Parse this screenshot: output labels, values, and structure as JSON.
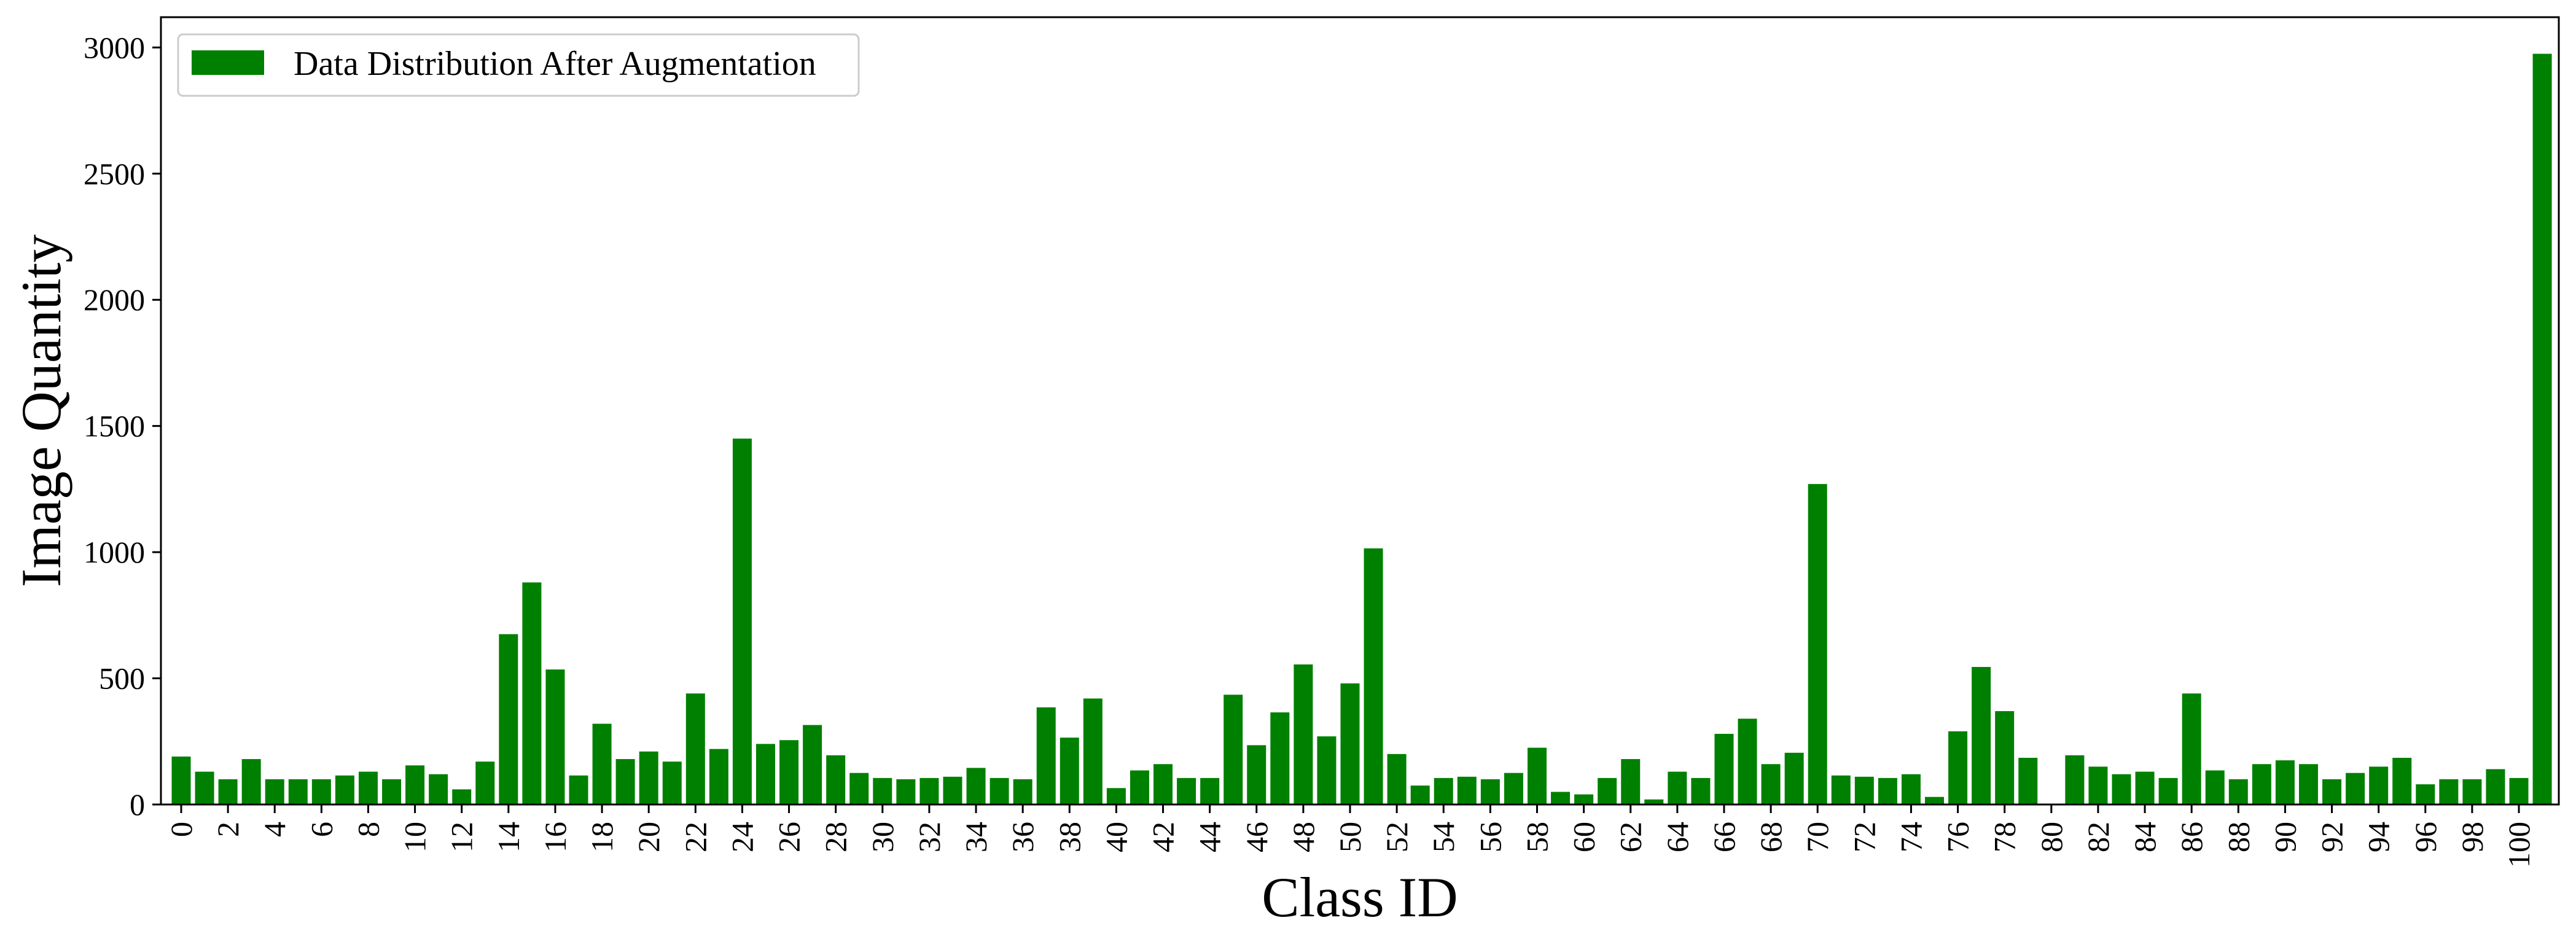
{
  "chart_data": {
    "type": "bar",
    "title": "",
    "xlabel": "Class ID",
    "ylabel": "Image Quantity",
    "ylim": [
      0,
      3120
    ],
    "yticks": [
      0,
      500,
      1000,
      1500,
      2000,
      2500,
      3000
    ],
    "xtick_step": 2,
    "grid": false,
    "legend_position": "top-left",
    "bar_color": "#008000",
    "series": [
      {
        "name": "Data Distribution After Augmentation",
        "values": [
          190,
          130,
          100,
          180,
          100,
          100,
          100,
          115,
          130,
          100,
          155,
          120,
          60,
          170,
          675,
          880,
          535,
          115,
          320,
          180,
          210,
          170,
          440,
          220,
          1450,
          240,
          255,
          315,
          195,
          125,
          105,
          100,
          105,
          110,
          145,
          105,
          100,
          385,
          265,
          420,
          65,
          135,
          160,
          105,
          105,
          435,
          235,
          365,
          555,
          270,
          480,
          1015,
          200,
          75,
          105,
          110,
          100,
          125,
          225,
          50,
          40,
          105,
          180,
          20,
          130,
          105,
          280,
          340,
          160,
          205,
          1270,
          115,
          110,
          105,
          120,
          30,
          290,
          545,
          370,
          185,
          0,
          195,
          150,
          120,
          130,
          105,
          440,
          135,
          100,
          160,
          175,
          160,
          100,
          125,
          150,
          185,
          80,
          100,
          100,
          140,
          105,
          2975
        ]
      }
    ],
    "categories": [
      "0",
      "1",
      "2",
      "3",
      "4",
      "5",
      "6",
      "7",
      "8",
      "9",
      "10",
      "11",
      "12",
      "13",
      "14",
      "15",
      "16",
      "17",
      "18",
      "19",
      "20",
      "21",
      "22",
      "23",
      "24",
      "25",
      "26",
      "27",
      "28",
      "29",
      "30",
      "31",
      "32",
      "33",
      "34",
      "35",
      "36",
      "37",
      "38",
      "39",
      "40",
      "41",
      "42",
      "43",
      "44",
      "45",
      "46",
      "47",
      "48",
      "49",
      "50",
      "51",
      "52",
      "53",
      "54",
      "55",
      "56",
      "57",
      "58",
      "59",
      "60",
      "61",
      "62",
      "63",
      "64",
      "65",
      "66",
      "67",
      "68",
      "69",
      "70",
      "71",
      "72",
      "73",
      "74",
      "75",
      "76",
      "77",
      "78",
      "79",
      "80",
      "81",
      "82",
      "83",
      "84",
      "85",
      "86",
      "87",
      "88",
      "89",
      "90",
      "91",
      "92",
      "93",
      "94",
      "95",
      "96",
      "97",
      "98",
      "99",
      "100",
      "101"
    ]
  }
}
